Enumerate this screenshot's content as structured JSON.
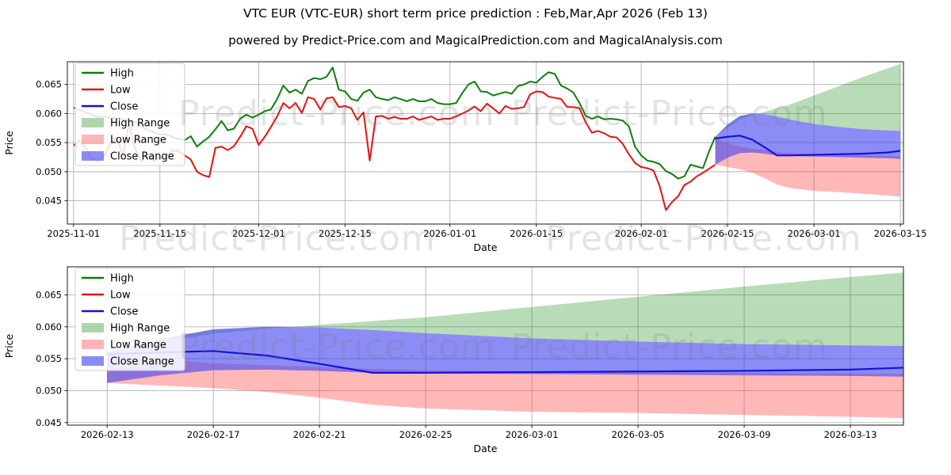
{
  "page": {
    "title": "VTC EUR (VTC-EUR) short term price prediction : Feb,Mar,Apr 2026 (Feb 13)",
    "subtitle": "powered by Predict-Price.com and MagicalPrediction.com and MagicalAnalysis.com",
    "watermark_text": "Predict-Price.com",
    "background": "#ffffff"
  },
  "colors": {
    "high_line": "#0e7d0e",
    "low_line": "#e51212",
    "close_line": "#1212d8",
    "high_fill": "#008000",
    "low_fill": "#ff4545",
    "close_fill": "#4646f0",
    "grid": "#b3b3b3",
    "spine": "#1a1a1a",
    "text": "#000000"
  },
  "chart_data": [
    {
      "id": "history-and-forecast",
      "type": "line",
      "xlabel": "Date",
      "ylabel": "Price",
      "xlim": [
        "2025-10-31",
        "2026-03-15T12:00:00"
      ],
      "ylim": [
        0.041,
        0.0689
      ],
      "y_ticks": [
        0.045,
        0.05,
        0.055,
        0.06,
        0.065
      ],
      "x_ticks": [
        "2025-11-01",
        "2025-11-15",
        "2025-12-01",
        "2025-12-15",
        "2026-01-01",
        "2026-01-15",
        "2026-02-01",
        "2026-02-15",
        "2026-03-01",
        "2026-03-15"
      ],
      "legend": [
        "High",
        "Low",
        "Close",
        "High Range",
        "Low Range",
        "Close Range"
      ],
      "grid": true,
      "history": {
        "start_date": "2025-11-01",
        "step_days": 1,
        "high": [
          0.061,
          0.0606,
          0.0602,
          0.0598,
          0.0594,
          0.0595,
          0.0592,
          0.0592,
          0.059,
          0.0588,
          0.0585,
          0.0578,
          0.0572,
          0.0568,
          0.0564,
          0.0564,
          0.056,
          0.0556,
          0.0554,
          0.0561,
          0.0543,
          0.0552,
          0.056,
          0.0573,
          0.0587,
          0.0571,
          0.0574,
          0.0591,
          0.0598,
          0.0593,
          0.0598,
          0.0604,
          0.0607,
          0.0625,
          0.0648,
          0.0636,
          0.0641,
          0.0634,
          0.0656,
          0.0661,
          0.0659,
          0.0663,
          0.0679,
          0.0641,
          0.0638,
          0.0625,
          0.0622,
          0.0636,
          0.0641,
          0.0628,
          0.0625,
          0.0623,
          0.0628,
          0.0625,
          0.0621,
          0.0625,
          0.0621,
          0.0621,
          0.0625,
          0.0618,
          0.0616,
          0.0616,
          0.0618,
          0.0635,
          0.065,
          0.0655,
          0.0638,
          0.0637,
          0.0631,
          0.0634,
          0.0637,
          0.0634,
          0.0647,
          0.065,
          0.0655,
          0.0653,
          0.0663,
          0.0671,
          0.0668,
          0.0648,
          0.0643,
          0.0636,
          0.0618,
          0.0596,
          0.0591,
          0.0595,
          0.059,
          0.0591,
          0.059,
          0.0588,
          0.0578,
          0.0543,
          0.0528,
          0.0519,
          0.0517,
          0.0513,
          0.0501,
          0.0496,
          0.0488,
          0.0492,
          0.0512,
          0.0509,
          0.0506,
          0.0535,
          0.056
        ],
        "low": [
          0.0545,
          0.0554,
          0.054,
          0.0522,
          0.0518,
          0.0528,
          0.0548,
          0.0559,
          0.0527,
          0.0583,
          0.054,
          0.0518,
          0.053,
          0.0518,
          0.0524,
          0.0527,
          0.0536,
          0.0536,
          0.0528,
          0.0521,
          0.05,
          0.0494,
          0.0491,
          0.0541,
          0.0543,
          0.0537,
          0.0544,
          0.056,
          0.0578,
          0.0574,
          0.0546,
          0.056,
          0.0577,
          0.0595,
          0.0618,
          0.0609,
          0.0618,
          0.0601,
          0.0628,
          0.0625,
          0.0607,
          0.0626,
          0.0628,
          0.0611,
          0.0613,
          0.0609,
          0.0589,
          0.0602,
          0.0519,
          0.0595,
          0.0596,
          0.0591,
          0.0594,
          0.0591,
          0.0591,
          0.0595,
          0.0589,
          0.0592,
          0.0595,
          0.0589,
          0.0591,
          0.0591,
          0.0595,
          0.06,
          0.0605,
          0.0612,
          0.0604,
          0.0617,
          0.0609,
          0.06,
          0.0613,
          0.0608,
          0.0609,
          0.0611,
          0.0633,
          0.0638,
          0.0637,
          0.0629,
          0.0627,
          0.0625,
          0.0611,
          0.0611,
          0.0609,
          0.0585,
          0.0567,
          0.057,
          0.0566,
          0.056,
          0.0559,
          0.0548,
          0.053,
          0.0515,
          0.0508,
          0.0506,
          0.0502,
          0.0475,
          0.0434,
          0.0448,
          0.0458,
          0.0477,
          0.0483,
          0.0492,
          0.0498,
          0.0505,
          0.0512
        ]
      },
      "forecast": {
        "dates": [
          "2026-02-13",
          "2026-02-15",
          "2026-02-17",
          "2026-02-19",
          "2026-02-21",
          "2026-02-23",
          "2026-02-25",
          "2026-03-01",
          "2026-03-05",
          "2026-03-09",
          "2026-03-13",
          "2026-03-15"
        ],
        "close": [
          0.0557,
          0.056,
          0.0562,
          0.0555,
          0.0542,
          0.0528,
          0.0528,
          0.0529,
          0.053,
          0.0531,
          0.0533,
          0.0536
        ],
        "high_top": [
          0.056,
          0.0576,
          0.0589,
          0.0597,
          0.0603,
          0.0609,
          0.0615,
          0.0631,
          0.0647,
          0.0663,
          0.0678,
          0.0685
        ],
        "close_top": [
          0.056,
          0.0581,
          0.0596,
          0.06,
          0.0599,
          0.0595,
          0.059,
          0.0582,
          0.0577,
          0.0573,
          0.0571,
          0.057
        ],
        "close_bottom": [
          0.0512,
          0.0524,
          0.0532,
          0.0533,
          0.0531,
          0.0528,
          0.0527,
          0.0526,
          0.0525,
          0.0524,
          0.0523,
          0.0522
        ],
        "low_top": [
          0.0557,
          0.0549,
          0.0543,
          0.054,
          0.0537,
          0.0534,
          0.0532,
          0.053,
          0.0529,
          0.0528,
          0.0527,
          0.0526
        ],
        "low_bottom": [
          0.0512,
          0.0508,
          0.0504,
          0.0498,
          0.0489,
          0.0478,
          0.0472,
          0.0467,
          0.0465,
          0.0462,
          0.0459,
          0.0457
        ]
      }
    },
    {
      "id": "forecast-detail",
      "type": "line",
      "xlabel": "Date",
      "ylabel": "Price",
      "xlim": [
        "2026-02-11T12:00:00",
        "2026-03-15"
      ],
      "ylim": [
        0.0446,
        0.0694
      ],
      "y_ticks": [
        0.045,
        0.05,
        0.055,
        0.06,
        0.065
      ],
      "x_ticks": [
        "2026-02-13",
        "2026-02-17",
        "2026-02-21",
        "2026-02-25",
        "2026-03-01",
        "2026-03-05",
        "2026-03-09",
        "2026-03-13"
      ],
      "legend": [
        "High",
        "Low",
        "Close",
        "High Range",
        "Low Range",
        "Close Range"
      ],
      "grid": true,
      "forecast": {
        "dates": [
          "2026-02-13",
          "2026-02-15",
          "2026-02-17",
          "2026-02-19",
          "2026-02-21",
          "2026-02-23",
          "2026-02-25",
          "2026-03-01",
          "2026-03-05",
          "2026-03-09",
          "2026-03-13",
          "2026-03-15"
        ],
        "close": [
          0.0557,
          0.056,
          0.0562,
          0.0555,
          0.0542,
          0.0528,
          0.0528,
          0.0529,
          0.053,
          0.0531,
          0.0533,
          0.0536
        ],
        "high_top": [
          0.056,
          0.0576,
          0.0589,
          0.0597,
          0.0603,
          0.0609,
          0.0615,
          0.0631,
          0.0647,
          0.0663,
          0.0678,
          0.0685
        ],
        "close_top": [
          0.056,
          0.0581,
          0.0596,
          0.06,
          0.0599,
          0.0595,
          0.059,
          0.0582,
          0.0577,
          0.0573,
          0.0571,
          0.057
        ],
        "close_bottom": [
          0.0512,
          0.0524,
          0.0532,
          0.0533,
          0.0531,
          0.0528,
          0.0527,
          0.0526,
          0.0525,
          0.0524,
          0.0523,
          0.0522
        ],
        "low_top": [
          0.0557,
          0.0549,
          0.0543,
          0.054,
          0.0537,
          0.0534,
          0.0532,
          0.053,
          0.0529,
          0.0528,
          0.0527,
          0.0526
        ],
        "low_bottom": [
          0.0512,
          0.0508,
          0.0504,
          0.0498,
          0.0489,
          0.0478,
          0.0472,
          0.0467,
          0.0465,
          0.0462,
          0.0459,
          0.0457
        ]
      }
    }
  ]
}
